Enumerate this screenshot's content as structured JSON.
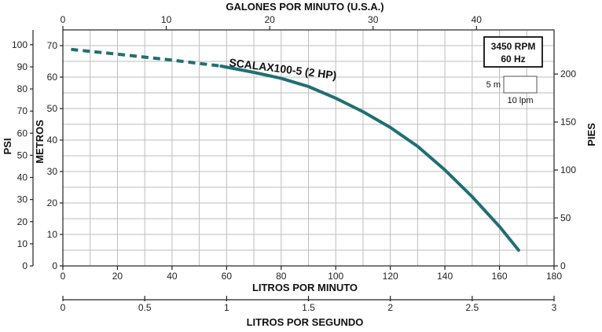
{
  "chart_data": {
    "type": "line",
    "title": "",
    "top_axis": {
      "label": "GALONES POR MINUTO (U.S.A.)",
      "range": [
        0,
        47.5
      ],
      "ticks": [
        "0",
        "10",
        "20",
        "30",
        "40"
      ],
      "tick_values": [
        0,
        10,
        20,
        30,
        40
      ]
    },
    "bottom_axis": {
      "label": "LITROS POR MINUTO",
      "range": [
        0,
        180
      ],
      "ticks": [
        "0",
        "20",
        "40",
        "60",
        "80",
        "100",
        "120",
        "140",
        "160",
        "180"
      ],
      "tick_values": [
        0,
        20,
        40,
        60,
        80,
        100,
        120,
        140,
        160,
        180
      ]
    },
    "second_bottom_axis": {
      "label": "LITROS POR SEGUNDO",
      "range": [
        0,
        3
      ],
      "ticks": [
        "0",
        "0.5",
        "1",
        "1.5",
        "2",
        "2.5",
        "3"
      ],
      "tick_values": [
        0,
        0.5,
        1,
        1.5,
        2,
        2.5,
        3
      ]
    },
    "left_axis_meters": {
      "label": "METROS",
      "range": [
        0,
        75
      ],
      "ticks": [
        "0",
        "10",
        "20",
        "30",
        "40",
        "50",
        "60",
        "70"
      ],
      "tick_values": [
        0,
        10,
        20,
        30,
        40,
        50,
        60,
        70
      ]
    },
    "left_axis_psi": {
      "label": "PSI",
      "range": [
        0,
        106.7
      ],
      "ticks": [
        "0",
        "10",
        "20",
        "30",
        "40",
        "50",
        "60",
        "70",
        "80",
        "90",
        "100"
      ],
      "tick_values": [
        0,
        10,
        20,
        30,
        40,
        50,
        60,
        70,
        80,
        90,
        100
      ]
    },
    "right_axis_feet": {
      "label": "PIES",
      "range": [
        0,
        246
      ],
      "ticks": [
        "0",
        "50",
        "100",
        "150",
        "200"
      ],
      "tick_values": [
        0,
        50,
        100,
        150,
        200
      ]
    },
    "grid": true,
    "series": [
      {
        "name": "SCALAX100-5 (2 HP)",
        "color": "#1f6f73",
        "x_unit": "litros por minuto",
        "y_unit": "metros",
        "dashed_until_x": 58,
        "points": [
          [
            3,
            68.8
          ],
          [
            20,
            67.3
          ],
          [
            40,
            65.4
          ],
          [
            58,
            63.5
          ],
          [
            70,
            61.5
          ],
          [
            80,
            59.6
          ],
          [
            90,
            57.0
          ],
          [
            100,
            53.3
          ],
          [
            110,
            49.0
          ],
          [
            120,
            44.0
          ],
          [
            130,
            38.0
          ],
          [
            140,
            30.5
          ],
          [
            150,
            22.0
          ],
          [
            160,
            12.5
          ],
          [
            167,
            5.0
          ]
        ]
      }
    ],
    "legend_box": {
      "line1": "3450 RPM",
      "line2": "60 Hz"
    },
    "scale_key": {
      "vertical_label": "5 m",
      "horizontal_label": "10 lpm"
    }
  }
}
